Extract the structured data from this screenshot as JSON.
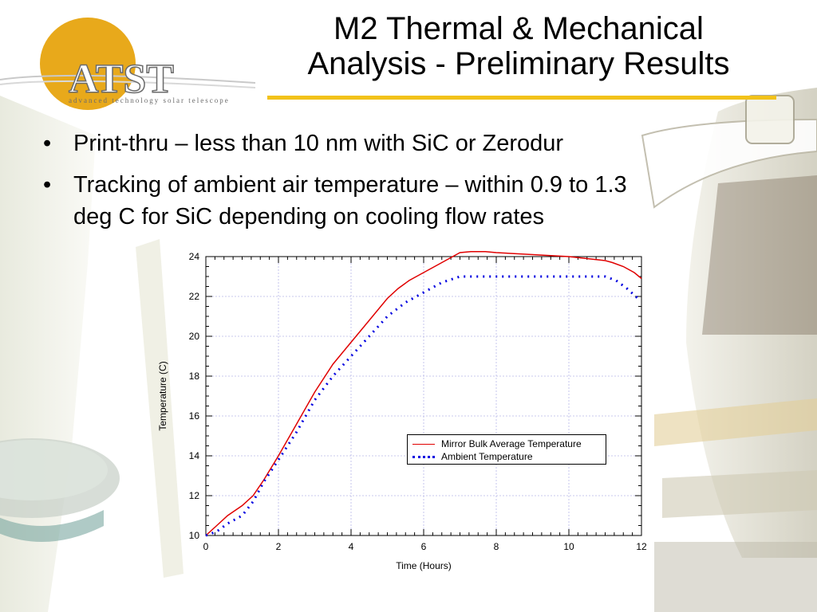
{
  "slide": {
    "title_line1": "M2 Thermal & Mechanical",
    "title_line2": "Analysis - Preliminary Results",
    "logo_text": "ATST",
    "logo_tagline": "advanced technology solar telescope",
    "bullets": [
      {
        "marker": "•",
        "text": "Print-thru – less than 10 nm with SiC or Zerodur"
      },
      {
        "marker": "•",
        "text": "Tracking of ambient air temperature – within 0.9 to 1.3"
      },
      {
        "marker": "",
        "text": "deg C for SiC depending on cooling flow rates"
      }
    ],
    "colors": {
      "accent": "#f2c21a",
      "logo_orange": "#e8a91b",
      "logo_gray": "#6b6b6b"
    }
  },
  "chart_data": {
    "type": "line",
    "title": "",
    "xlabel": "Time (Hours)",
    "ylabel": "Temperature (C)",
    "xlim": [
      0,
      12
    ],
    "ylim": [
      10,
      24
    ],
    "xticks": [
      0,
      2,
      4,
      6,
      8,
      10,
      12
    ],
    "yticks": [
      10,
      12,
      14,
      16,
      18,
      20,
      22,
      24
    ],
    "grid": true,
    "legend_position": "center-right",
    "series": [
      {
        "name": "Mirror Bulk Average Temperature",
        "color": "#e00000",
        "style": "solid",
        "x": [
          0,
          0.3,
          0.6,
          1.0,
          1.3,
          1.6,
          2.0,
          2.5,
          3.0,
          3.5,
          4.0,
          4.5,
          5.0,
          5.3,
          5.6,
          6.0,
          6.5,
          7.0,
          7.3,
          7.7,
          8.0,
          9.0,
          10.0,
          11.0,
          11.2,
          11.5,
          11.8,
          12.0
        ],
        "y": [
          10.0,
          10.5,
          11.0,
          11.5,
          12.0,
          12.8,
          14.0,
          15.6,
          17.2,
          18.6,
          19.7,
          20.8,
          21.9,
          22.4,
          22.8,
          23.2,
          23.7,
          24.2,
          24.25,
          24.25,
          24.2,
          24.1,
          24.0,
          23.8,
          23.7,
          23.5,
          23.2,
          22.9
        ]
      },
      {
        "name": "Ambient Temperature",
        "color": "#0000e0",
        "style": "dotted",
        "x": [
          0,
          0.3,
          0.6,
          1.0,
          1.3,
          1.6,
          2.0,
          2.5,
          3.0,
          3.5,
          4.0,
          4.5,
          5.0,
          5.5,
          6.0,
          6.5,
          7.0,
          7.5,
          8.0,
          9.0,
          10.0,
          11.0,
          11.3,
          11.6,
          11.9
        ],
        "y": [
          10.0,
          10.2,
          10.6,
          11.0,
          11.7,
          12.7,
          13.8,
          15.2,
          16.8,
          18.0,
          19.0,
          20.0,
          21.0,
          21.7,
          22.2,
          22.7,
          23.0,
          23.0,
          23.0,
          23.0,
          23.0,
          23.0,
          22.8,
          22.4,
          21.9
        ]
      }
    ]
  }
}
